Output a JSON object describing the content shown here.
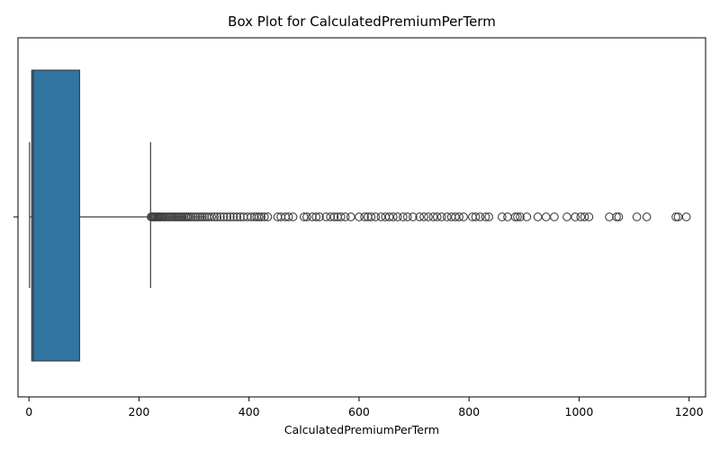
{
  "chart_data": {
    "type": "box",
    "title": "Box Plot for CalculatedPremiumPerTerm",
    "xlabel": "CalculatedPremiumPerTerm",
    "ylabel": "",
    "xlim": [
      -20,
      1230
    ],
    "xticks": [
      0,
      200,
      400,
      600,
      800,
      1000,
      1200
    ],
    "xtick_labels": [
      "0",
      "200",
      "400",
      "600",
      "800",
      "1000",
      "1200"
    ],
    "ytick_labels": [
      ""
    ],
    "grid": false,
    "box": {
      "whisker_low": 1,
      "q1": 5,
      "median": 8,
      "q3": 92,
      "whisker_high": 221,
      "fill_color": "#3274a1",
      "line_color": "#3f3f3f"
    },
    "outliers": [
      222,
      224,
      226,
      228,
      230,
      232,
      234,
      236,
      238,
      240,
      243,
      246,
      249,
      252,
      255,
      258,
      261,
      264,
      267,
      270,
      273,
      276,
      279,
      282,
      285,
      288,
      291,
      295,
      299,
      303,
      307,
      311,
      315,
      319,
      323,
      327,
      332,
      337,
      342,
      348,
      354,
      360,
      366,
      372,
      378,
      384,
      390,
      397,
      404,
      410,
      414,
      418,
      422,
      428,
      434,
      452,
      458,
      466,
      472,
      480,
      500,
      505,
      515,
      522,
      528,
      540,
      548,
      555,
      561,
      567,
      575,
      585,
      600,
      610,
      616,
      622,
      630,
      640,
      648,
      655,
      662,
      670,
      680,
      688,
      698,
      710,
      718,
      726,
      735,
      742,
      750,
      760,
      768,
      775,
      782,
      790,
      806,
      812,
      820,
      830,
      836,
      860,
      870,
      884,
      888,
      893,
      905,
      925,
      940,
      955,
      978,
      993,
      1003,
      1010,
      1018,
      1055,
      1068,
      1072,
      1105,
      1123,
      1176,
      1180,
      1195
    ],
    "outlier_color": "#3f3f3f"
  }
}
